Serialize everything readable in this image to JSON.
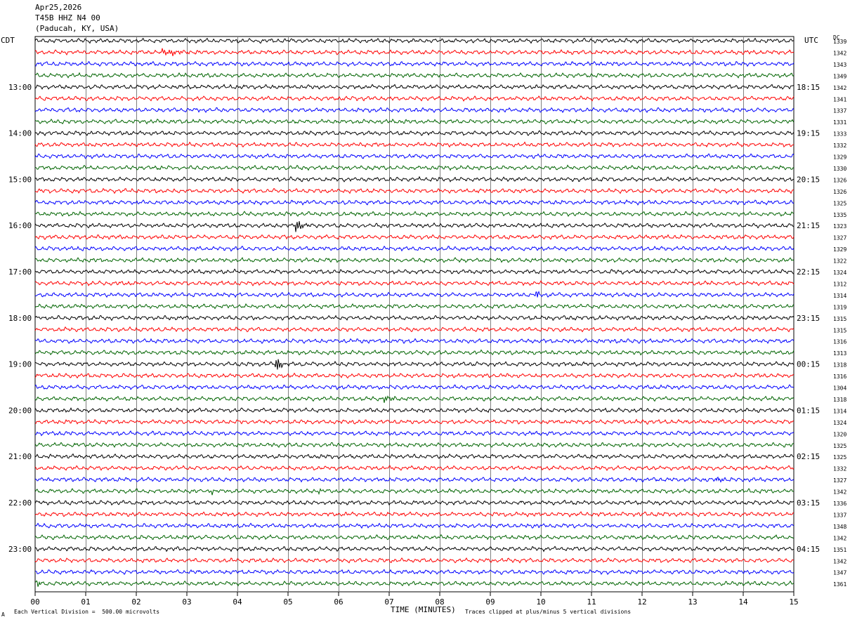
{
  "header": {
    "date": "Apr25,2026",
    "station": "T45B HHZ N4 00",
    "location": "(Paducah, KY, USA)"
  },
  "left_tz": "CDT",
  "right_tz": "UTC",
  "dc_label": "DC",
  "footer": {
    "division": "Each Vertical Division =  500.00 microvolts",
    "clip": "Traces clipped at plus/minus 5 vertical divisions",
    "corner": "A"
  },
  "colors": {
    "trace": [
      "#000000",
      "#ff0000",
      "#0000ff",
      "#006400"
    ],
    "grid": "#808080"
  },
  "chart_data": {
    "type": "line",
    "xlabel": "TIME (MINUTES)",
    "xlim": [
      0,
      15
    ],
    "x_ticks": [
      "00",
      "01",
      "02",
      "03",
      "04",
      "05",
      "06",
      "07",
      "08",
      "09",
      "10",
      "11",
      "12",
      "13",
      "14",
      "15"
    ],
    "rows_per_hour": 4,
    "left_hours": [
      "13:00",
      "14:00",
      "15:00",
      "16:00",
      "17:00",
      "18:00",
      "19:00",
      "20:00",
      "21:00",
      "22:00",
      "23:00"
    ],
    "right_hours": [
      "18:15",
      "19:15",
      "20:15",
      "21:15",
      "22:15",
      "23:15",
      "00:15",
      "01:15",
      "02:15",
      "03:15",
      "04:15"
    ],
    "first_hour_row": 4,
    "dc_values": [
      1339,
      1342,
      1343,
      1349,
      1342,
      1341,
      1337,
      1331,
      1333,
      1332,
      1329,
      1330,
      1326,
      1326,
      1325,
      1335,
      1323,
      1327,
      1329,
      1322,
      1324,
      1312,
      1314,
      1319,
      1315,
      1315,
      1316,
      1313,
      1318,
      1316,
      1304,
      1318,
      1314,
      1324,
      1320,
      1325,
      1325,
      1332,
      1327,
      1342,
      1336,
      1337,
      1348,
      1342,
      1351,
      1342,
      1347,
      1361
    ],
    "events": [
      {
        "row": 1,
        "minute": 2.5,
        "amp": 4,
        "dur": 1.3
      },
      {
        "row": 16,
        "minute": 5.15,
        "amp": 10,
        "dur": 0.35
      },
      {
        "row": 22,
        "minute": 9.92,
        "amp": 12,
        "dur": 0.12
      },
      {
        "row": 28,
        "minute": 4.78,
        "amp": 19,
        "dur": 0.15
      },
      {
        "row": 31,
        "minute": 6.9,
        "amp": 5,
        "dur": 0.4
      },
      {
        "row": 38,
        "minute": 13.5,
        "amp": 5,
        "dur": 0.3
      },
      {
        "row": 39,
        "minute": 5.6,
        "amp": 5,
        "dur": 0.1
      },
      {
        "row": 39,
        "minute": 3.5,
        "amp": 4,
        "dur": 0.1
      },
      {
        "row": 47,
        "minute": 0.05,
        "amp": 5,
        "dur": 0.15
      }
    ]
  }
}
